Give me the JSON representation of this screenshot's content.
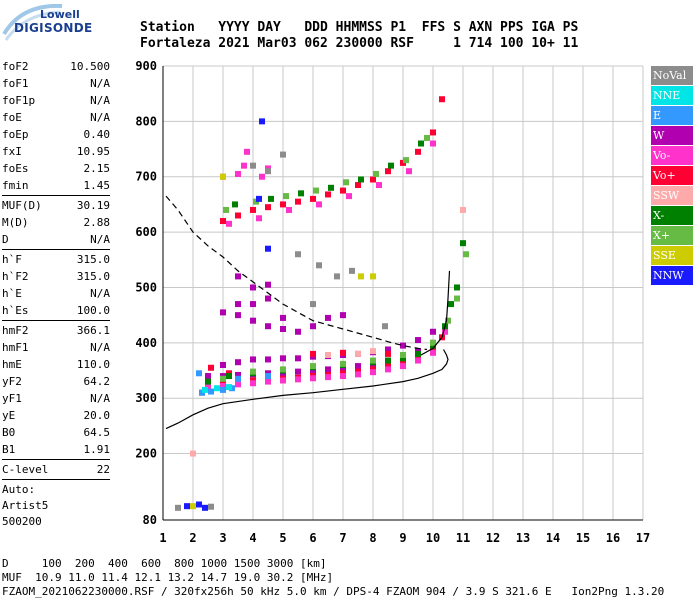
{
  "logo": {
    "line1": "Lowell",
    "line2": "DIGISONDE"
  },
  "header": {
    "line1": "Station   YYYY DAY   DDD HHMMSS P1  FFS S AXN PPS IGA PS",
    "line2": "Fortaleza 2021 Mar03 062 230000 RSF     1 714 100 10+ 11"
  },
  "sidebar": [
    {
      "k": "foF2",
      "v": "10.500"
    },
    {
      "k": "foF1",
      "v": "N/A"
    },
    {
      "k": "foF1p",
      "v": "N/A"
    },
    {
      "k": "foE",
      "v": "N/A"
    },
    {
      "k": "foEp",
      "v": "0.40"
    },
    {
      "k": "fxI",
      "v": "10.95"
    },
    {
      "k": "foEs",
      "v": "2.15"
    },
    {
      "k": "fmin",
      "v": "1.45"
    },
    {
      "sep": true
    },
    {
      "k": "MUF(D)",
      "v": "30.19"
    },
    {
      "k": "M(D)",
      "v": "2.88"
    },
    {
      "k": "D",
      "v": "N/A"
    },
    {
      "sep": true
    },
    {
      "k": "h`F",
      "v": "315.0"
    },
    {
      "k": "h`F2",
      "v": "315.0"
    },
    {
      "k": "h`E",
      "v": "N/A"
    },
    {
      "k": "h`Es",
      "v": "100.0"
    },
    {
      "sep": true
    },
    {
      "k": "hmF2",
      "v": "366.1"
    },
    {
      "k": "hmF1",
      "v": "N/A"
    },
    {
      "k": "hmE",
      "v": "110.0"
    },
    {
      "k": "yF2",
      "v": "64.2"
    },
    {
      "k": "yF1",
      "v": "N/A"
    },
    {
      "k": "yE",
      "v": "20.0"
    },
    {
      "k": "B0",
      "v": "64.5"
    },
    {
      "k": "B1",
      "v": "1.91"
    },
    {
      "sep": true
    },
    {
      "k": "C-level",
      "v": "22"
    },
    {
      "sep": true
    },
    {
      "text": "Auto:"
    },
    {
      "text": "Artist5"
    },
    {
      "text": "500200"
    }
  ],
  "legend": [
    {
      "label": "NoVal",
      "color": "#8c8c8c"
    },
    {
      "label": "NNE",
      "color": "#00e5e5"
    },
    {
      "label": "E",
      "color": "#3399ff"
    },
    {
      "label": "W",
      "color": "#b000b0"
    },
    {
      "label": "Vo-",
      "color": "#ff33cc"
    },
    {
      "label": "Vo+",
      "color": "#ff0033"
    },
    {
      "label": "SSW",
      "color": "#ffaaaa"
    },
    {
      "label": "X-",
      "color": "#008000"
    },
    {
      "label": "X+",
      "color": "#66bb44"
    },
    {
      "label": "SSE",
      "color": "#cccc00"
    },
    {
      "label": "NNW",
      "color": "#1a1aff"
    }
  ],
  "footer": {
    "line1": "D     100  200  400  600  800 1000 1500 3000 [km]",
    "line2": "MUF  10.9 11.0 11.4 12.1 13.2 14.7 19.0 30.2 [MHz]",
    "line3": "FZAOM_2021062230000.RSF / 320fx256h 50 kHz 5.0 km / DPS-4 FZAOM 904 / 3.9 S 321.6 E   Ion2Png 1.3.20"
  },
  "chart_data": {
    "type": "scatter",
    "xlim": [
      1,
      17
    ],
    "ylim": [
      80,
      900
    ],
    "xticks": [
      1,
      2,
      3,
      4,
      5,
      6,
      7,
      8,
      9,
      10,
      11,
      12,
      13,
      14,
      15,
      16,
      17
    ],
    "yticks": [
      80,
      200,
      300,
      400,
      500,
      600,
      700,
      800,
      900
    ],
    "grid": true,
    "series": [
      {
        "color": "#b000b0",
        "points": [
          [
            3.0,
            360
          ],
          [
            3.5,
            365
          ],
          [
            4.0,
            370
          ],
          [
            4.5,
            370
          ],
          [
            5.0,
            372
          ],
          [
            5.5,
            372
          ],
          [
            6.0,
            375
          ],
          [
            6.5,
            376
          ],
          [
            7.0,
            378
          ],
          [
            7.5,
            380
          ],
          [
            8.0,
            383
          ],
          [
            8.5,
            388
          ],
          [
            9.0,
            395
          ],
          [
            9.5,
            405
          ],
          [
            10.0,
            420
          ],
          [
            3.5,
            450
          ],
          [
            4.0,
            440
          ],
          [
            4.5,
            430
          ],
          [
            5.0,
            425
          ],
          [
            5.5,
            420
          ],
          [
            6.0,
            430
          ],
          [
            6.5,
            445
          ],
          [
            7.0,
            450
          ],
          [
            4.0,
            470
          ],
          [
            4.5,
            480
          ],
          [
            3.5,
            470
          ],
          [
            3.0,
            455
          ],
          [
            5.0,
            445
          ],
          [
            4.5,
            505
          ],
          [
            4.0,
            500
          ],
          [
            3.5,
            520
          ],
          [
            2.5,
            340
          ],
          [
            3.0,
            340
          ],
          [
            3.5,
            342
          ],
          [
            4.0,
            343
          ],
          [
            4.5,
            345
          ],
          [
            5.0,
            345
          ],
          [
            5.5,
            348
          ],
          [
            6.0,
            350
          ],
          [
            6.5,
            352
          ],
          [
            7.0,
            355
          ],
          [
            7.5,
            358
          ],
          [
            8.0,
            362
          ],
          [
            8.5,
            368
          ],
          [
            9.0,
            375
          ],
          [
            9.5,
            385
          ],
          [
            10.0,
            400
          ]
        ]
      },
      {
        "color": "#ff0033",
        "points": [
          [
            2.5,
            325
          ],
          [
            3.0,
            328
          ],
          [
            3.5,
            330
          ],
          [
            4.0,
            332
          ],
          [
            4.5,
            333
          ],
          [
            5.0,
            335
          ],
          [
            5.5,
            337
          ],
          [
            6.0,
            340
          ],
          [
            6.5,
            342
          ],
          [
            7.0,
            345
          ],
          [
            7.5,
            348
          ],
          [
            8.0,
            352
          ],
          [
            8.5,
            358
          ],
          [
            9.0,
            365
          ],
          [
            9.5,
            375
          ],
          [
            10.0,
            390
          ],
          [
            10.3,
            410
          ],
          [
            3.0,
            620
          ],
          [
            3.5,
            630
          ],
          [
            4.0,
            640
          ],
          [
            4.5,
            645
          ],
          [
            5.0,
            650
          ],
          [
            5.5,
            655
          ],
          [
            6.0,
            660
          ],
          [
            6.5,
            668
          ],
          [
            7.0,
            675
          ],
          [
            7.5,
            685
          ],
          [
            8.0,
            695
          ],
          [
            8.5,
            710
          ],
          [
            9.0,
            725
          ],
          [
            9.5,
            745
          ],
          [
            10.0,
            780
          ],
          [
            10.3,
            840
          ],
          [
            2.3,
            310
          ],
          [
            2.6,
            355
          ],
          [
            3.2,
            345
          ],
          [
            6.0,
            380
          ],
          [
            7.0,
            382
          ],
          [
            8.5,
            380
          ]
        ]
      },
      {
        "color": "#ff33cc",
        "points": [
          [
            2.5,
            320
          ],
          [
            3.0,
            322
          ],
          [
            3.5,
            325
          ],
          [
            4.0,
            327
          ],
          [
            4.5,
            330
          ],
          [
            5.0,
            332
          ],
          [
            5.5,
            334
          ],
          [
            6.0,
            336
          ],
          [
            6.5,
            338
          ],
          [
            7.0,
            340
          ],
          [
            7.5,
            343
          ],
          [
            8.0,
            347
          ],
          [
            8.5,
            352
          ],
          [
            9.0,
            358
          ],
          [
            9.5,
            368
          ],
          [
            10.0,
            382
          ],
          [
            10.4,
            420
          ],
          [
            3.2,
            615
          ],
          [
            4.2,
            625
          ],
          [
            5.2,
            640
          ],
          [
            6.2,
            650
          ],
          [
            7.2,
            665
          ],
          [
            8.2,
            685
          ],
          [
            9.2,
            710
          ],
          [
            10.0,
            760
          ],
          [
            3.0,
            700
          ],
          [
            3.5,
            705
          ],
          [
            3.7,
            720
          ],
          [
            4.3,
            700
          ],
          [
            3.8,
            745
          ],
          [
            4.5,
            715
          ]
        ]
      },
      {
        "color": "#008000",
        "points": [
          [
            2.5,
            330
          ],
          [
            3.2,
            340
          ],
          [
            4.0,
            345
          ],
          [
            5.0,
            350
          ],
          [
            6.0,
            356
          ],
          [
            7.0,
            360
          ],
          [
            8.0,
            365
          ],
          [
            8.5,
            368
          ],
          [
            9.0,
            372
          ],
          [
            9.5,
            380
          ],
          [
            10.0,
            395
          ],
          [
            10.4,
            430
          ],
          [
            10.6,
            470
          ],
          [
            10.8,
            500
          ],
          [
            3.4,
            650
          ],
          [
            4.6,
            660
          ],
          [
            5.6,
            670
          ],
          [
            6.6,
            680
          ],
          [
            7.6,
            695
          ],
          [
            8.6,
            720
          ],
          [
            9.6,
            760
          ],
          [
            11.0,
            580
          ]
        ]
      },
      {
        "color": "#66bb44",
        "points": [
          [
            3.0,
            335
          ],
          [
            4.0,
            348
          ],
          [
            5.0,
            352
          ],
          [
            6.0,
            358
          ],
          [
            7.0,
            362
          ],
          [
            8.0,
            368
          ],
          [
            9.0,
            378
          ],
          [
            10.0,
            400
          ],
          [
            10.5,
            440
          ],
          [
            10.8,
            480
          ],
          [
            3.1,
            640
          ],
          [
            4.1,
            655
          ],
          [
            5.1,
            665
          ],
          [
            6.1,
            675
          ],
          [
            7.1,
            690
          ],
          [
            8.1,
            705
          ],
          [
            9.1,
            730
          ],
          [
            9.8,
            770
          ],
          [
            11.1,
            560
          ]
        ]
      },
      {
        "color": "#3399ff",
        "points": [
          [
            2.3,
            310
          ],
          [
            2.6,
            312
          ],
          [
            3.0,
            315
          ],
          [
            3.3,
            318
          ],
          [
            2.2,
            345
          ],
          [
            3.5,
            335
          ],
          [
            4.5,
            340
          ]
        ]
      },
      {
        "color": "#00e5e5",
        "points": [
          [
            2.4,
            315
          ],
          [
            2.8,
            318
          ],
          [
            3.2,
            320
          ]
        ]
      },
      {
        "color": "#ffaaaa",
        "points": [
          [
            7.5,
            380
          ],
          [
            8.0,
            385
          ],
          [
            6.5,
            378
          ],
          [
            11.0,
            640
          ],
          [
            2.0,
            200
          ]
        ]
      },
      {
        "color": "#cccc00",
        "points": [
          [
            2.0,
            105
          ],
          [
            3.0,
            700
          ],
          [
            7.6,
            520
          ],
          [
            8.0,
            520
          ]
        ]
      },
      {
        "color": "#1a1aff",
        "points": [
          [
            4.3,
            800
          ],
          [
            1.8,
            105
          ],
          [
            2.2,
            108
          ],
          [
            2.4,
            102
          ],
          [
            4.5,
            570
          ],
          [
            4.2,
            660
          ]
        ]
      },
      {
        "color": "#8c8c8c",
        "points": [
          [
            1.5,
            102
          ],
          [
            2.6,
            104
          ],
          [
            4.0,
            720
          ],
          [
            4.5,
            710
          ],
          [
            5.0,
            740
          ],
          [
            5.5,
            560
          ],
          [
            6.2,
            540
          ],
          [
            6.8,
            520
          ],
          [
            7.3,
            530
          ],
          [
            8.4,
            430
          ],
          [
            6.0,
            470
          ]
        ]
      }
    ],
    "curves": [
      {
        "style": "solid",
        "points": [
          [
            1.1,
            245
          ],
          [
            1.5,
            255
          ],
          [
            2.0,
            270
          ],
          [
            2.5,
            282
          ],
          [
            3.0,
            290
          ],
          [
            4.0,
            298
          ],
          [
            5.0,
            305
          ],
          [
            6.0,
            310
          ],
          [
            7.0,
            316
          ],
          [
            8.0,
            322
          ],
          [
            9.0,
            330
          ],
          [
            9.5,
            336
          ],
          [
            10.0,
            345
          ],
          [
            10.3,
            352
          ],
          [
            10.45,
            362
          ],
          [
            10.5,
            370
          ],
          [
            10.45,
            378
          ],
          [
            10.35,
            388
          ]
        ]
      },
      {
        "style": "dashed",
        "points": [
          [
            1.1,
            665
          ],
          [
            1.5,
            640
          ],
          [
            2.0,
            600
          ],
          [
            2.5,
            575
          ],
          [
            3.0,
            555
          ],
          [
            3.5,
            530
          ],
          [
            4.0,
            510
          ],
          [
            4.5,
            490
          ],
          [
            5.0,
            470
          ],
          [
            5.5,
            455
          ],
          [
            6.0,
            440
          ],
          [
            7.0,
            425
          ],
          [
            8.0,
            410
          ],
          [
            8.5,
            402
          ],
          [
            9.0,
            395
          ],
          [
            9.5,
            390
          ],
          [
            9.8,
            388
          ]
        ]
      },
      {
        "style": "solid",
        "points": [
          [
            9.6,
            378
          ],
          [
            10.0,
            390
          ],
          [
            10.3,
            410
          ],
          [
            10.45,
            440
          ],
          [
            10.5,
            480
          ],
          [
            10.55,
            530
          ]
        ]
      }
    ]
  }
}
